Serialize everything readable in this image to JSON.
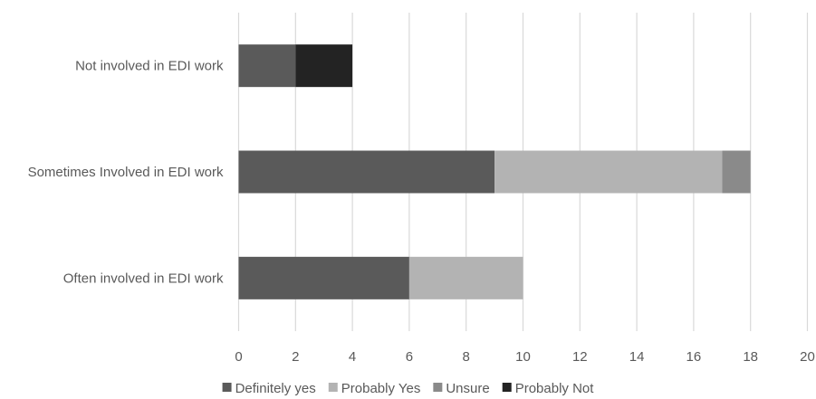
{
  "chart_data": {
    "type": "bar",
    "orientation": "horizontal",
    "stacked": true,
    "title": "",
    "xlabel": "",
    "ylabel": "",
    "categories": [
      "Often involved in EDI work",
      "Sometimes Involved in EDI work",
      "Not involved in EDI work"
    ],
    "series": [
      {
        "name": "Definitely yes",
        "color": "#5a5a5a",
        "values": [
          6,
          9,
          2
        ]
      },
      {
        "name": "Probably Yes",
        "color": "#b3b3b3",
        "values": [
          4,
          8,
          0
        ]
      },
      {
        "name": "Unsure",
        "color": "#8a8a8a",
        "values": [
          0,
          1,
          0
        ]
      },
      {
        "name": "Probably Not",
        "color": "#232323",
        "values": [
          0,
          0,
          2
        ]
      }
    ],
    "xlim": [
      0,
      20
    ],
    "x_ticks": [
      0,
      2,
      4,
      6,
      8,
      10,
      12,
      14,
      16,
      18,
      20
    ],
    "grid": true,
    "gridline_color": "#d9d9d9",
    "legend": "bottom"
  }
}
